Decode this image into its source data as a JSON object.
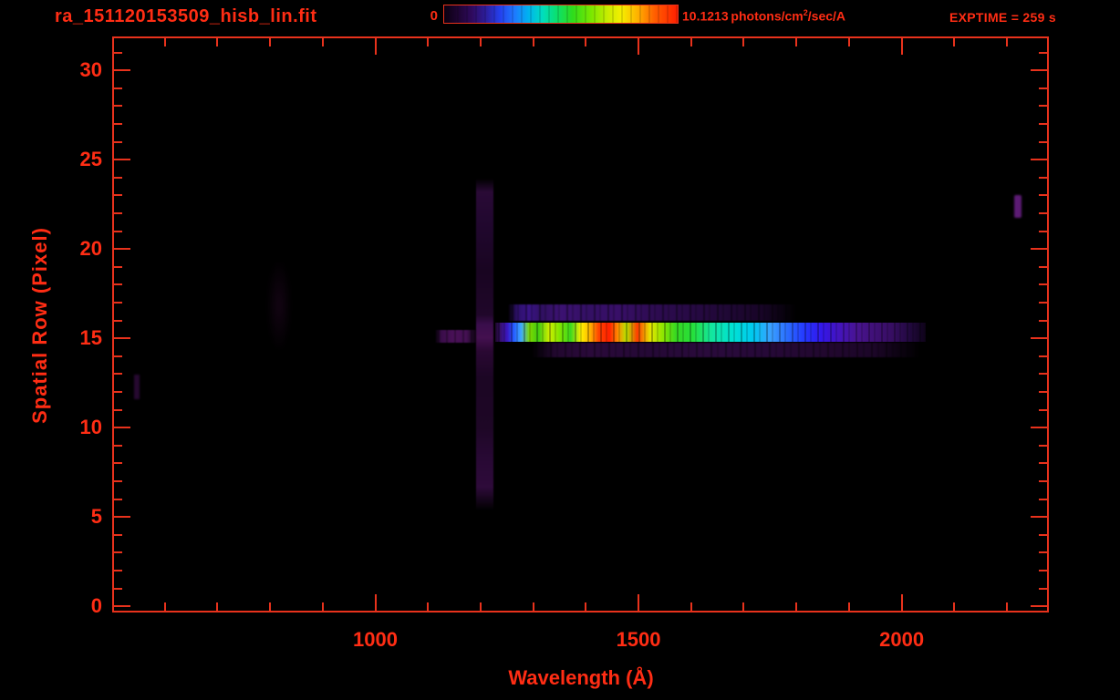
{
  "header": {
    "exptime_label": "EXPTIME = 259 s",
    "colorbar": {
      "min_label": "0",
      "max_value": "10.1213",
      "unit_prefix": "photons/cm",
      "unit_exponent": "2",
      "unit_suffix": "/sec/A"
    }
  },
  "colors": {
    "text_red": "#ff2d14",
    "axis_red": "#e8321c",
    "background": "#000000",
    "palette": "rainbow (black-purple-blue-cyan-green-yellow-orange-red)"
  },
  "chart_data": {
    "type": "heatmap",
    "title": "ra_151120153509_hisb_lin.fit",
    "xlabel": "Wavelength (Å)",
    "ylabel": "Spatial Row (Pixel)",
    "xlim": [
      500,
      2280
    ],
    "ylim": [
      0,
      32
    ],
    "xticks": [
      1000,
      1500,
      2000
    ],
    "xtick_minor_step": 100,
    "yticks": [
      0,
      5,
      10,
      15,
      20,
      25,
      30
    ],
    "ytick_minor_step": 1,
    "grid": false,
    "legend_position": "none",
    "colorbar": {
      "min": 0,
      "max": 10.1213,
      "units": "photons/cm^2/sec/A",
      "position": "top-center"
    },
    "exposure_time_s": 259,
    "features": [
      {
        "name": "primary-spectrum-trace",
        "row": 15.3,
        "wavelength_range": [
          1228,
          2046
        ],
        "peak_flux_wavelengths": [
          1415,
          1515
        ],
        "description": "bright spectral trace color-coded by flux: blue ~1255 Å, green-yellow 1290-1390 Å, red (max ~10.1) 1410-1520 Å, yellow-green 1530-1700 Å, cyan 1700-1820 Å, blue 1820-1930 Å, violet fading to 2046 Å"
      },
      {
        "name": "lyman-alpha-airglow-column",
        "wavelength": 1212,
        "row_range": [
          5.5,
          24
        ],
        "intensity": "faint purple, brighter near rows 6-8 and at trace crossing"
      },
      {
        "name": "pre-lya-trace-segment",
        "row": 15.3,
        "wavelength_range": [
          1114,
          1193
        ],
        "intensity": "faint purple"
      },
      {
        "name": "upper-secondary-band",
        "row_range": [
          16,
          17
        ],
        "wavelength_range": [
          1252,
          1800
        ],
        "intensity": "faint striped purple-indigo"
      },
      {
        "name": "lower-secondary-band",
        "row": 14,
        "wavelength_range": [
          1297,
          2035
        ],
        "intensity": "very faint striped purple"
      },
      {
        "name": "right-edge-blob",
        "wavelength_range": [
          2214,
          2228
        ],
        "row_range": [
          21.7,
          23.0
        ],
        "intensity": "faint purple"
      },
      {
        "name": "left-faint-dash",
        "wavelength_range": [
          542,
          552
        ],
        "row_range": [
          11.6,
          12.9
        ],
        "intensity": "very faint purple"
      },
      {
        "name": "mid-left-smudge",
        "wavelength_range": [
          795,
          840
        ],
        "row_range": [
          14.4,
          19.3
        ],
        "intensity": "barely visible dark purple"
      }
    ],
    "estimated_row15_flux_profile": {
      "x": [
        1230,
        1260,
        1280,
        1300,
        1350,
        1400,
        1440,
        1470,
        1500,
        1530,
        1570,
        1650,
        1750,
        1850,
        1950,
        2030
      ],
      "values": [
        0.5,
        2.5,
        3.5,
        6.0,
        6.5,
        8.0,
        10.1,
        7.5,
        9.5,
        6.5,
        5.5,
        5.0,
        4.0,
        3.0,
        1.5,
        0.6
      ]
    }
  }
}
